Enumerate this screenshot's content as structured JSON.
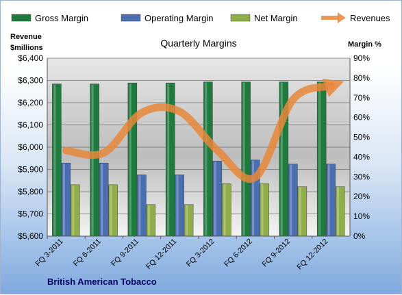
{
  "chart_data": {
    "type": "bar",
    "title": "Quarterly Margins",
    "footer": "British American Tobacco",
    "left_axis_title": [
      "Revenue",
      "$millions"
    ],
    "right_axis_title": "Margin %",
    "categories": [
      "FQ 3-2011",
      "FQ 6-2011",
      "FQ 9-2011",
      "FQ 12-2011",
      "FQ 3-2012",
      "FQ 6-2012",
      "FQ 9-2012",
      "FQ 12-2012"
    ],
    "series": [
      {
        "name": "Gross Margin",
        "axis": "right",
        "color": "#1f7a3e",
        "values": [
          77,
          77,
          77.5,
          77.5,
          78,
          78,
          78,
          78
        ]
      },
      {
        "name": "Operating Margin",
        "axis": "right",
        "color": "#4a6eb0",
        "values": [
          37,
          37,
          31,
          31,
          38,
          38.5,
          36.5,
          36.5
        ]
      },
      {
        "name": "Net Margin",
        "axis": "right",
        "color": "#8fae4a",
        "values": [
          26,
          26,
          16,
          16,
          26.5,
          26.5,
          25,
          25
        ]
      },
      {
        "name": "Revenues",
        "axis": "left",
        "type": "line",
        "color": "#e8873a",
        "values": [
          5985,
          5975,
          6155,
          6160,
          5985,
          5865,
          6215,
          6275
        ]
      }
    ],
    "left_axis": {
      "min": 5600,
      "max": 6400,
      "step": 100,
      "tick_labels": [
        "$5,600",
        "$5,700",
        "$5,800",
        "$5,900",
        "$6,000",
        "$6,100",
        "$6,200",
        "$6,300",
        "$6,400"
      ]
    },
    "right_axis": {
      "min": 0,
      "max": 90,
      "step": 10,
      "tick_labels": [
        "0%",
        "10%",
        "20%",
        "30%",
        "40%",
        "50%",
        "60%",
        "70%",
        "80%",
        "90%"
      ]
    },
    "grid": true,
    "legend_position": "top"
  }
}
